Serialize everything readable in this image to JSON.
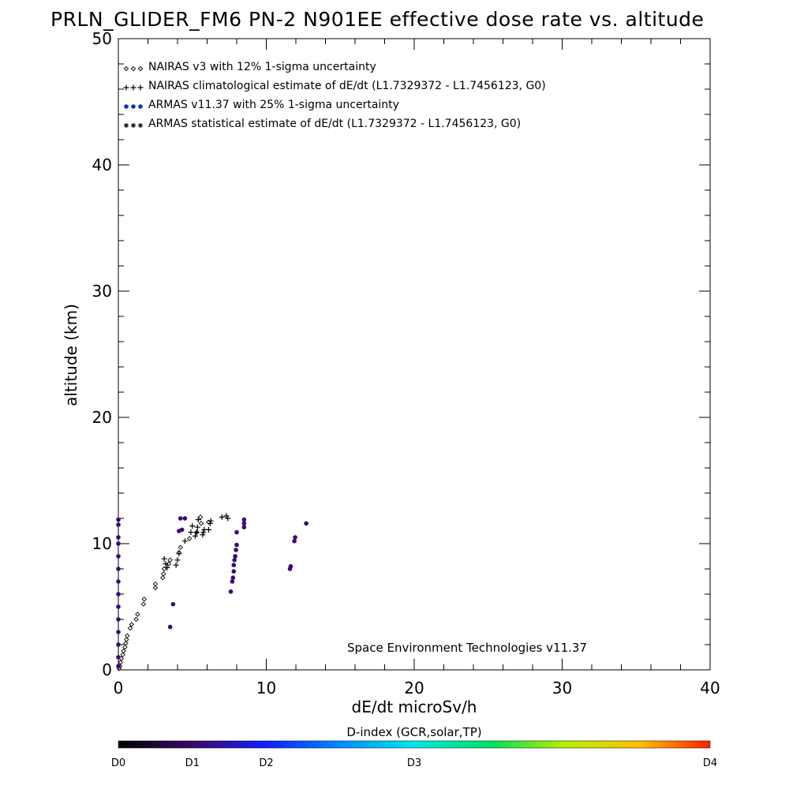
{
  "chart_data": {
    "type": "scatter",
    "title": "PRLN_GLIDER_FM6 PN-2 N901EE effective dose rate vs. altitude",
    "xlabel": "dE/dt microSv/h",
    "ylabel": "altitude (km)",
    "xlim": [
      0,
      40
    ],
    "ylim": [
      0,
      50
    ],
    "x_ticks": [
      "0",
      "10",
      "20",
      "30",
      "40"
    ],
    "y_ticks": [
      "0",
      "10",
      "20",
      "30",
      "40",
      "50"
    ],
    "grid": false,
    "legend_position": "top-left",
    "legend": [
      {
        "symbol": "◇◇◇",
        "label": "NAIRAS v3 with 12% 1-sigma uncertainty"
      },
      {
        "symbol": "+++",
        "label": "NAIRAS climatological estimate of dE/dt (L1.7329372 - L1.7456123, G0)"
      },
      {
        "symbol": "●●●",
        "label": "ARMAS v11.37 with 25% 1-sigma uncertainty"
      },
      {
        "symbol": "***",
        "label": "ARMAS statistical estimate of dE/dt (L1.7329372 - L1.7456123, G0)"
      }
    ],
    "annotation": "Space Environment Technologies v11.37",
    "colorbar": {
      "title": "D-index (GCR,solar,TP)",
      "labels": [
        "D0",
        "D1",
        "D2",
        "D3",
        "D4"
      ],
      "label_positions": [
        0,
        0.125,
        0.25,
        0.5,
        1.0
      ]
    },
    "series": [
      {
        "name": "NAIRAS v3 with 12% 1-sigma uncertainty",
        "marker": "diamond",
        "color": "#000000",
        "points": [
          [
            0.05,
            0.1
          ],
          [
            0.1,
            0.3
          ],
          [
            0.15,
            0.6
          ],
          [
            0.2,
            0.9
          ],
          [
            0.3,
            1.2
          ],
          [
            0.35,
            1.5
          ],
          [
            0.45,
            1.8
          ],
          [
            0.5,
            2.1
          ],
          [
            0.55,
            2.4
          ],
          [
            0.6,
            2.7
          ],
          [
            0.8,
            3.3
          ],
          [
            0.9,
            3.6
          ],
          [
            1.2,
            4.0
          ],
          [
            1.3,
            4.4
          ],
          [
            1.7,
            5.2
          ],
          [
            1.75,
            5.6
          ],
          [
            2.5,
            6.5
          ],
          [
            2.5,
            6.8
          ],
          [
            3.0,
            7.3
          ],
          [
            3.05,
            7.6
          ],
          [
            3.1,
            8.0
          ],
          [
            3.4,
            8.4
          ],
          [
            3.5,
            8.7
          ],
          [
            4.1,
            9.3
          ],
          [
            4.2,
            9.7
          ],
          [
            4.8,
            10.4
          ],
          [
            5.3,
            10.9
          ],
          [
            5.6,
            11.6
          ],
          [
            6.1,
            11.7
          ],
          [
            5.55,
            12.1
          ]
        ]
      },
      {
        "name": "NAIRAS climatological estimate of dE/dt (L1.7329372 - L1.7456123, G0)",
        "marker": "plus",
        "color": "#000000",
        "points": [
          [
            3.1,
            8.8
          ],
          [
            3.2,
            8.4
          ],
          [
            3.3,
            8.1
          ],
          [
            3.9,
            8.3
          ],
          [
            4.0,
            8.7
          ],
          [
            4.1,
            9.2
          ],
          [
            4.5,
            10.2
          ],
          [
            4.9,
            10.9
          ],
          [
            5.0,
            11.4
          ],
          [
            5.2,
            10.6
          ],
          [
            5.3,
            10.9
          ],
          [
            5.35,
            11.3
          ],
          [
            5.4,
            11.9
          ],
          [
            5.7,
            10.7
          ],
          [
            5.75,
            10.9
          ],
          [
            5.8,
            11.1
          ],
          [
            6.1,
            11.1
          ],
          [
            6.2,
            11.6
          ],
          [
            6.25,
            11.8
          ],
          [
            7.0,
            12.1
          ],
          [
            7.3,
            12.2
          ],
          [
            7.4,
            12.0
          ]
        ]
      },
      {
        "name": "ARMAS v11.37 with 25% 1-sigma uncertainty",
        "marker": "dot",
        "color": "#3a0a78",
        "points": [
          [
            0.0,
            0.3
          ],
          [
            0.0,
            1.0
          ],
          [
            0.0,
            2.0
          ],
          [
            0.0,
            3.0
          ],
          [
            0.0,
            4.0
          ],
          [
            0.0,
            5.0
          ],
          [
            0.0,
            6.0
          ],
          [
            0.0,
            7.0
          ],
          [
            0.0,
            8.0
          ],
          [
            0.0,
            9.0
          ],
          [
            0.0,
            10.0
          ],
          [
            0.0,
            10.5
          ],
          [
            0.0,
            11.5
          ],
          [
            0.0,
            11.9
          ],
          [
            3.5,
            3.4
          ],
          [
            3.7,
            5.2
          ],
          [
            4.1,
            11.0
          ],
          [
            4.3,
            11.1
          ],
          [
            4.2,
            12.0
          ],
          [
            4.5,
            12.0
          ],
          [
            7.6,
            6.2
          ],
          [
            7.7,
            7.0
          ],
          [
            7.75,
            7.3
          ],
          [
            7.8,
            7.8
          ],
          [
            7.8,
            8.3
          ],
          [
            7.85,
            8.7
          ],
          [
            7.9,
            9.0
          ],
          [
            7.95,
            9.5
          ],
          [
            8.0,
            9.9
          ],
          [
            8.0,
            10.9
          ],
          [
            8.5,
            11.3
          ],
          [
            8.5,
            11.6
          ],
          [
            8.5,
            11.9
          ],
          [
            11.6,
            8.0
          ],
          [
            11.65,
            8.2
          ],
          [
            11.9,
            10.2
          ],
          [
            11.95,
            10.5
          ],
          [
            12.7,
            11.6
          ]
        ]
      },
      {
        "name": "ARMAS statistical estimate of dE/dt (L1.7329372 - L1.7456123, G0)",
        "marker": "asterisk",
        "color": "#000000",
        "points": []
      }
    ]
  }
}
